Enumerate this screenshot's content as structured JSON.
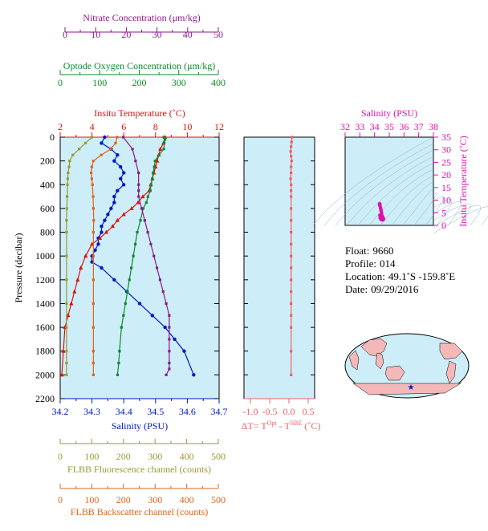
{
  "colors": {
    "nitrate": "#8b1a8b",
    "oxygen": "#0b8a2a",
    "temperature": "#e01010",
    "salinity": "#0018c8",
    "fluorescence": "#9a9a30",
    "backscatter": "#e0641e",
    "delta": "#f06060",
    "ts": "#e010b0",
    "plotbg": "#cdeef8"
  },
  "axes": {
    "nitrate": {
      "label": "Nitrate Concentration (μm/kg)",
      "ticks": [
        "0",
        "10",
        "20",
        "30",
        "40",
        "50"
      ]
    },
    "oxygen": {
      "label": "Optode Oxygen Concentration (μm/kg)",
      "ticks": [
        "0",
        "100",
        "200",
        "300",
        "400"
      ]
    },
    "temperature": {
      "label": "Insitu Temperature (˚C)",
      "ticks": [
        "2",
        "4",
        "6",
        "8",
        "10",
        "12"
      ]
    },
    "salinity": {
      "label": "Salinity (PSU)",
      "ticks": [
        "34.2",
        "34.3",
        "34.4",
        "34.5",
        "34.6",
        "34.7"
      ]
    },
    "pressure": {
      "label": "Pressure (decibar)",
      "ticks": [
        "0",
        "200",
        "400",
        "600",
        "800",
        "1000",
        "1200",
        "1400",
        "1600",
        "1800",
        "2000",
        "2200"
      ]
    },
    "fluorescence": {
      "label": "FLBB Fluorescence channel (counts)",
      "ticks": [
        "0",
        "100",
        "200",
        "300",
        "400",
        "500"
      ]
    },
    "backscatter": {
      "label": "FLBB Backscatter channel (counts)",
      "ticks": [
        "0",
        "100",
        "200",
        "300",
        "400",
        "500"
      ]
    },
    "delta": {
      "label_main": "ΔT= T",
      "label_sup1": "Opt",
      "label_mid": " - T",
      "label_sup2": "SBE",
      "label_end": " (˚C)",
      "ticks": [
        "-1.0",
        "-0.5",
        "0.0",
        "0.5"
      ]
    },
    "ts_salinity": {
      "label": "Salinity (PSU)",
      "ticks": [
        "32",
        "33",
        "34",
        "35",
        "36",
        "37",
        "38"
      ]
    },
    "ts_temp": {
      "label": "Insitu Temperature (˚C)",
      "ticks": [
        "0",
        "5",
        "10",
        "15",
        "20",
        "25",
        "30",
        "35"
      ]
    }
  },
  "info": {
    "float_label": "Float:",
    "float": "9660",
    "profile_label": "Profile:",
    "profile": "014",
    "location_label": "Location:",
    "location": "49.1˚S  -159.8˚E",
    "date_label": "Date:",
    "date": "09/29/2016"
  },
  "chart_data": [
    {
      "type": "line",
      "pressure_range": [
        0,
        2200
      ],
      "series": [
        {
          "name": "Salinity",
          "x": [
            34.34,
            34.33,
            34.36,
            34.38,
            34.37,
            34.39,
            34.4,
            34.39,
            34.4,
            34.38,
            34.37,
            34.37,
            34.36,
            34.35,
            34.34,
            34.33,
            34.33,
            34.32,
            34.32,
            34.31,
            34.3,
            34.3,
            34.33,
            34.37,
            34.41,
            34.45,
            34.49,
            34.53,
            34.56,
            34.59,
            34.62
          ],
          "p": [
            0,
            50,
            100,
            150,
            200,
            250,
            300,
            350,
            400,
            450,
            500,
            550,
            600,
            650,
            700,
            750,
            800,
            850,
            900,
            950,
            1000,
            1050,
            1100,
            1200,
            1300,
            1400,
            1500,
            1600,
            1700,
            1800,
            2000
          ]
        },
        {
          "name": "Temperature",
          "x": [
            8.6,
            8.5,
            8.3,
            8.2,
            8.1,
            8.0,
            7.9,
            7.8,
            7.7,
            7.6,
            7.2,
            6.9,
            6.5,
            6.0,
            5.6,
            5.3,
            4.9,
            4.5,
            4.0,
            3.6,
            3.3,
            3.1,
            2.9,
            2.7,
            2.5,
            2.3,
            2.2,
            2.1
          ],
          "p": [
            0,
            50,
            100,
            150,
            200,
            250,
            300,
            350,
            400,
            450,
            500,
            550,
            600,
            650,
            700,
            750,
            800,
            850,
            900,
            1000,
            1100,
            1200,
            1300,
            1400,
            1500,
            1600,
            1800,
            2000
          ]
        },
        {
          "name": "Oxygen",
          "x": [
            262,
            265,
            263,
            262,
            250,
            240,
            238,
            235,
            233,
            230,
            228,
            222,
            218,
            210,
            203,
            195,
            190,
            185,
            180,
            175,
            170,
            165,
            160,
            155,
            150,
            148,
            145
          ],
          "p": [
            0,
            20,
            50,
            100,
            150,
            200,
            250,
            300,
            350,
            400,
            450,
            500,
            550,
            600,
            700,
            800,
            900,
            1000,
            1100,
            1200,
            1300,
            1400,
            1500,
            1600,
            1800,
            1900,
            2000
          ]
        },
        {
          "name": "Nitrate",
          "x": [
            19,
            22,
            23,
            24,
            24,
            24,
            24,
            25,
            26,
            27,
            28,
            29,
            30,
            31,
            32,
            33,
            34,
            34,
            34,
            34,
            34,
            34,
            33
          ],
          "p": [
            0,
            100,
            200,
            300,
            400,
            450,
            500,
            600,
            700,
            800,
            900,
            1000,
            1100,
            1200,
            1300,
            1400,
            1500,
            1600,
            1700,
            1800,
            1900,
            1950,
            2000
          ]
        },
        {
          "name": "Fluorescence",
          "x": [
            100,
            80,
            60,
            40,
            30,
            28,
            25,
            24,
            23,
            22,
            21,
            20,
            20,
            20,
            20,
            20,
            20,
            20,
            20,
            20
          ],
          "p": [
            0,
            50,
            100,
            150,
            200,
            250,
            300,
            350,
            400,
            500,
            600,
            700,
            800,
            1000,
            1200,
            1400,
            1600,
            1800,
            1900,
            2000
          ]
        },
        {
          "name": "Backscatter",
          "x": [
            180,
            175,
            160,
            130,
            105,
            100,
            98,
            100,
            102,
            104,
            105,
            106,
            105,
            105,
            105,
            105,
            105,
            105,
            105,
            105
          ],
          "p": [
            0,
            50,
            100,
            150,
            200,
            250,
            300,
            350,
            400,
            500,
            600,
            700,
            800,
            1000,
            1200,
            1400,
            1600,
            1800,
            1900,
            2000
          ]
        }
      ]
    },
    {
      "type": "line",
      "xlim": [
        -1.0,
        0.5
      ],
      "series": [
        {
          "name": "Delta T",
          "x": [
            0.02,
            0.01,
            0.0,
            -0.01,
            0.0,
            0.01,
            0.0,
            0.0,
            -0.01,
            0.0,
            0.0,
            0.0,
            0.0,
            0.0,
            0.0,
            0.0,
            0.0,
            0.0,
            0.0,
            0.0,
            0.0,
            0.0,
            0.0,
            0.0,
            0.0
          ],
          "p": [
            0,
            40,
            80,
            120,
            160,
            200,
            250,
            300,
            350,
            400,
            450,
            500,
            600,
            700,
            800,
            900,
            1000,
            1100,
            1200,
            1300,
            1400,
            1500,
            1600,
            1800,
            2000
          ]
        }
      ]
    },
    {
      "type": "scatter",
      "xlim": [
        32,
        38
      ],
      "ylim": [
        0,
        35
      ],
      "series": [
        {
          "name": "TS",
          "x": [
            34.35,
            34.34,
            34.36,
            34.38,
            34.4,
            34.42,
            34.44,
            34.46,
            34.47,
            34.48,
            34.5,
            34.52,
            34.55,
            34.58,
            34.6,
            34.6,
            34.58,
            34.55,
            34.5,
            34.46,
            34.42,
            34.38,
            34.36
          ],
          "y": [
            8.6,
            8.3,
            8.0,
            7.6,
            7.0,
            6.5,
            6.0,
            5.5,
            5.0,
            4.5,
            4.0,
            3.6,
            3.3,
            3.0,
            2.7,
            2.4,
            2.3,
            2.2,
            2.2,
            2.3,
            2.6,
            3.0,
            4.0
          ]
        }
      ]
    }
  ]
}
